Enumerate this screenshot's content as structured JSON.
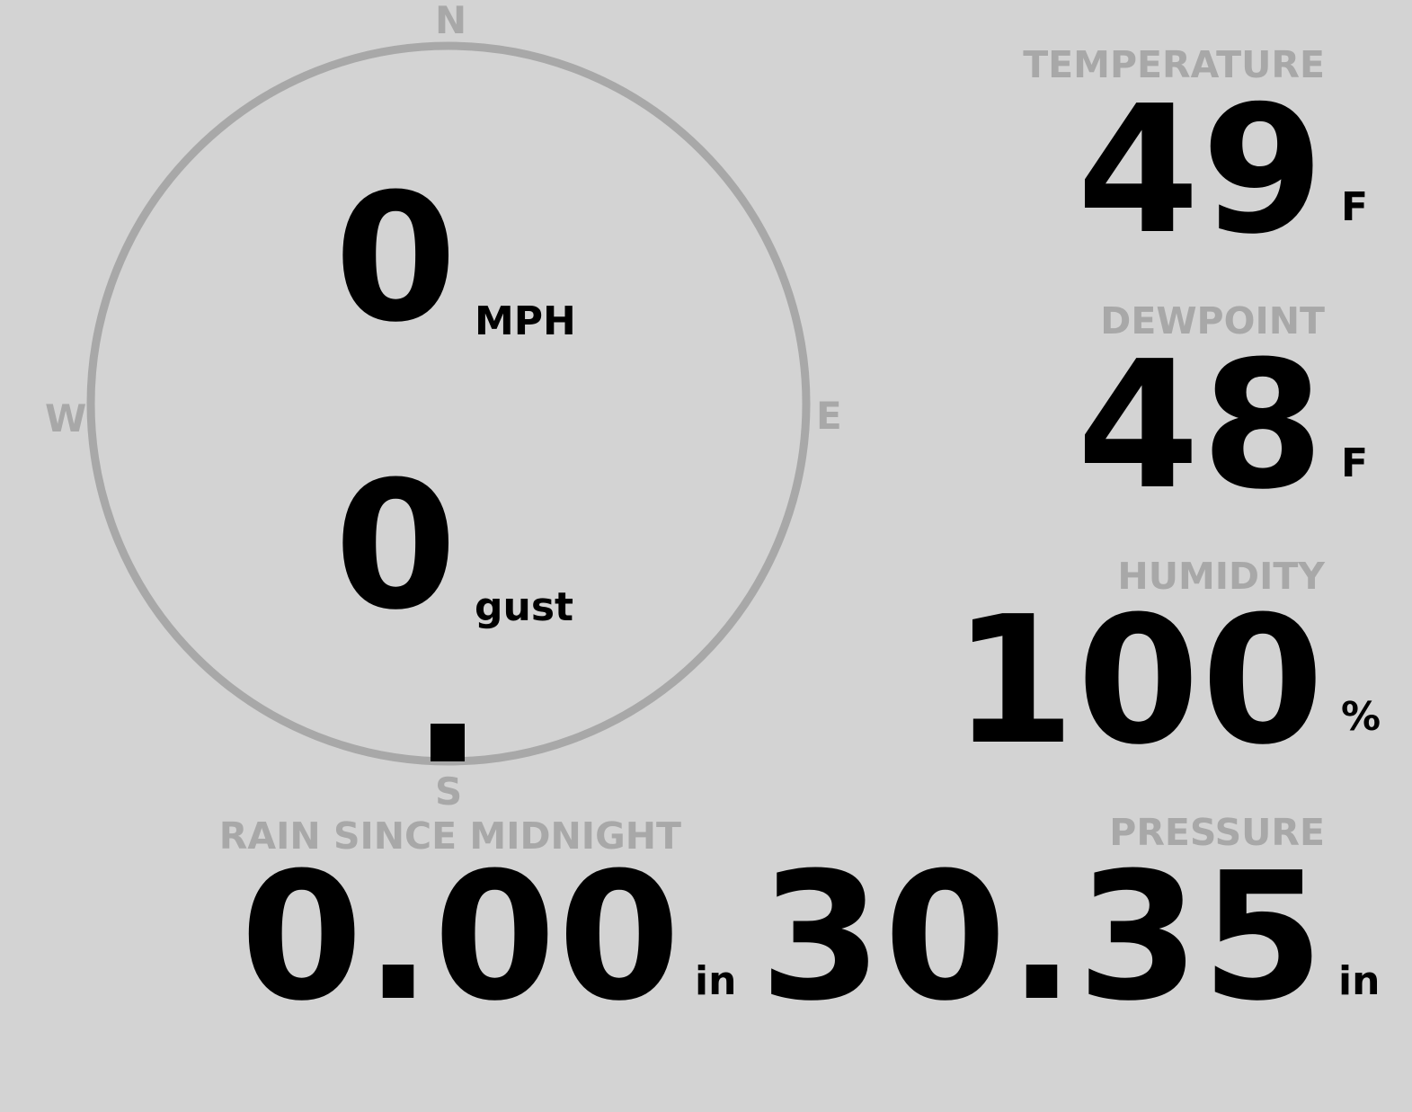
{
  "wind": {
    "speed": "0",
    "speed_unit": "MPH",
    "gust": "0",
    "gust_unit": "gust",
    "direction_deg": 180,
    "compass": {
      "n": "N",
      "e": "E",
      "s": "S",
      "w": "W"
    }
  },
  "colors": {
    "background": "#d3d3d3",
    "muted": "#a8a8a8",
    "value": "#000000"
  },
  "rain": {
    "label": "RAIN SINCE MIDNIGHT",
    "value": "0.00",
    "unit": "in"
  },
  "temperature": {
    "label": "TEMPERATURE",
    "value": "49",
    "unit": "F"
  },
  "dewpoint": {
    "label": "DEWPOINT",
    "value": "48",
    "unit": "F"
  },
  "humidity": {
    "label": "HUMIDITY",
    "value": "100",
    "unit": "%"
  },
  "pressure": {
    "label": "PRESSURE",
    "value": "30.35",
    "unit": "in"
  }
}
